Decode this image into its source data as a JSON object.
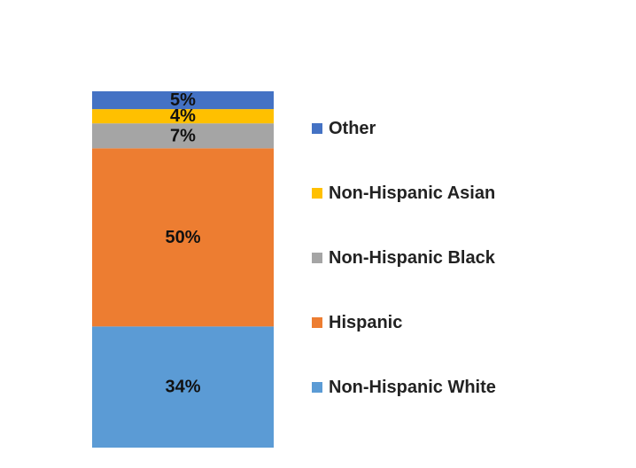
{
  "chart_data": {
    "type": "bar",
    "stacked": true,
    "percent": true,
    "title": "",
    "xlabel": "",
    "ylabel": "",
    "ylim": [
      0,
      100
    ],
    "grid": false,
    "legend_position": "right",
    "categories": [
      ""
    ],
    "series": [
      {
        "name": "Non-Hispanic White",
        "values": [
          34
        ],
        "label": "34%",
        "color": "#5B9BD5"
      },
      {
        "name": "Hispanic",
        "values": [
          50
        ],
        "label": "50%",
        "color": "#ED7D31"
      },
      {
        "name": "Non-Hispanic Black",
        "values": [
          7
        ],
        "label": "7%",
        "color": "#A5A5A5"
      },
      {
        "name": "Non-Hispanic Asian",
        "values": [
          4
        ],
        "label": "4%",
        "color": "#FFC000"
      },
      {
        "name": "Other",
        "values": [
          5
        ],
        "label": "5%",
        "color": "#4472C4"
      }
    ]
  }
}
